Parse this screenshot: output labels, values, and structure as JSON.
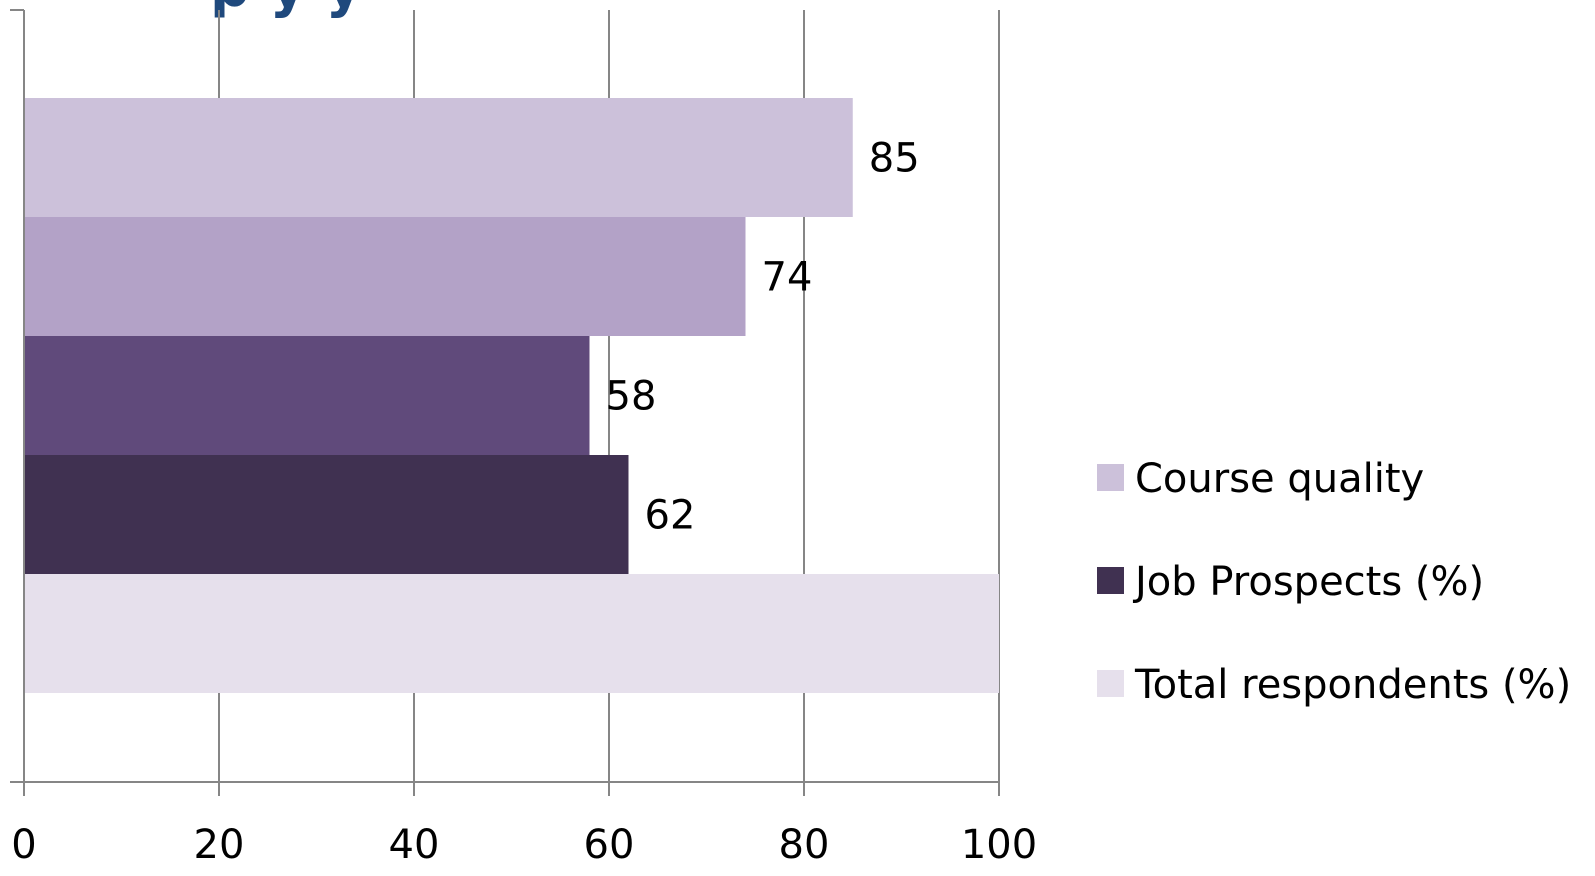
{
  "chart_data": {
    "type": "bar",
    "orientation": "horizontal",
    "title_fragment": "p y y",
    "xlim": [
      0,
      100
    ],
    "xticks": [
      "0",
      "20",
      "40",
      "60",
      "80",
      "100"
    ],
    "grid": true,
    "bars": [
      {
        "series": "Course quality",
        "value": 85,
        "label": "85",
        "color": "#ccc1da"
      },
      {
        "series": "",
        "value": 74,
        "label": "74",
        "color": "#b3a2c7"
      },
      {
        "series": "",
        "value": 58,
        "label": "58",
        "color": "#604a7b"
      },
      {
        "series": "Job Prospects (%)",
        "value": 62,
        "label": "62",
        "color": "#403151"
      },
      {
        "series": "Total respondents (%)",
        "value": 100,
        "label": "",
        "color": "#e6e0ec"
      }
    ],
    "legend": {
      "position": "right",
      "entries": [
        {
          "name": "Course quality",
          "color": "#ccc1da"
        },
        {
          "name": "Job Prospects (%)",
          "color": "#403151"
        },
        {
          "name": "Total respondents (%)",
          "color": "#e6e0ec"
        }
      ]
    }
  }
}
